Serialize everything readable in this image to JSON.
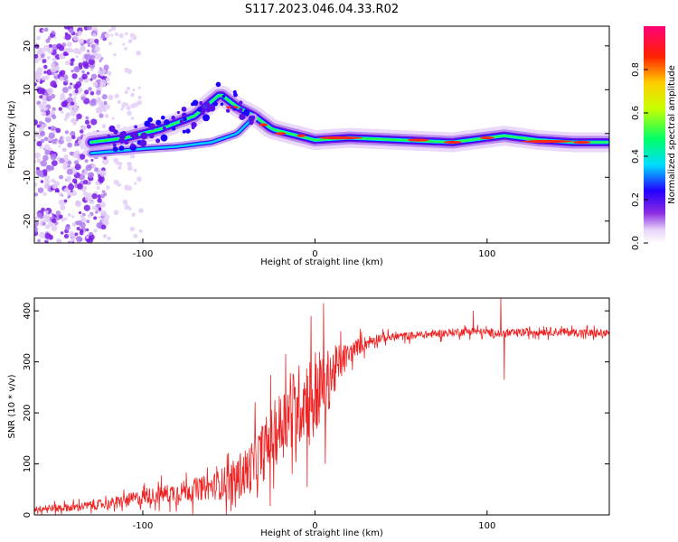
{
  "title": "S117.2023.046.04.33.R02",
  "chart_data": [
    {
      "type": "heatmap",
      "xlabel": "Height of straight line (km)",
      "ylabel": "Frequency (Hz)",
      "xlim": [
        -163,
        171
      ],
      "ylim": [
        -25,
        24.5
      ],
      "x_ticks": [
        "-100",
        "0",
        "100"
      ],
      "y_ticks": [
        "-20",
        "-10",
        "0",
        "10",
        "20"
      ],
      "colorbar": {
        "label": "Normalized spectral amplitude",
        "range": [
          0,
          1
        ],
        "ticks": [
          "0.0",
          "0.2",
          "0.4",
          "0.6",
          "0.8"
        ]
      },
      "ridge": {
        "x": [
          -130,
          -110,
          -90,
          -70,
          -55,
          -45,
          -35,
          -25,
          -15,
          -5,
          0,
          20,
          50,
          80,
          100,
          110,
          130,
          150,
          171
        ],
        "y": [
          -2,
          -1,
          1,
          4,
          9,
          6,
          4,
          1,
          0,
          -1,
          -1.5,
          -1,
          -1.5,
          -2,
          -1,
          -0.5,
          -1.5,
          -2,
          -2
        ]
      },
      "grid": false
    },
    {
      "type": "line",
      "xlabel": "Height of straight line (km)",
      "ylabel": "SNR (10 * v/v)",
      "xlim": [
        -163,
        171
      ],
      "ylim": [
        0,
        425
      ],
      "x_ticks": [
        "-100",
        "0",
        "100"
      ],
      "y_ticks": [
        "0",
        "100",
        "200",
        "300",
        "400"
      ],
      "color": "#ee2222",
      "profile": {
        "x": [
          -163,
          -140,
          -120,
          -100,
          -80,
          -60,
          -45,
          -35,
          -25,
          -15,
          -5,
          5,
          15,
          25,
          35,
          50,
          70,
          90,
          110,
          130,
          150,
          171
        ],
        "y": [
          12,
          15,
          22,
          35,
          45,
          55,
          70,
          100,
          150,
          200,
          230,
          250,
          300,
          330,
          345,
          350,
          355,
          360,
          355,
          360,
          358,
          355
        ]
      },
      "noise_amplitude": {
        "x": [
          -163,
          -120,
          -60,
          -30,
          0,
          20,
          40,
          171
        ],
        "y": [
          6,
          10,
          25,
          60,
          90,
          20,
          8,
          8
        ]
      },
      "spikes": [
        {
          "x": -17,
          "y": 315
        },
        {
          "x": 5,
          "y": 415
        },
        {
          "x": 6,
          "y": 100
        },
        {
          "x": 92,
          "y": 400
        },
        {
          "x": 108,
          "y": 425
        },
        {
          "x": 110,
          "y": 265
        }
      ],
      "grid": false
    }
  ]
}
